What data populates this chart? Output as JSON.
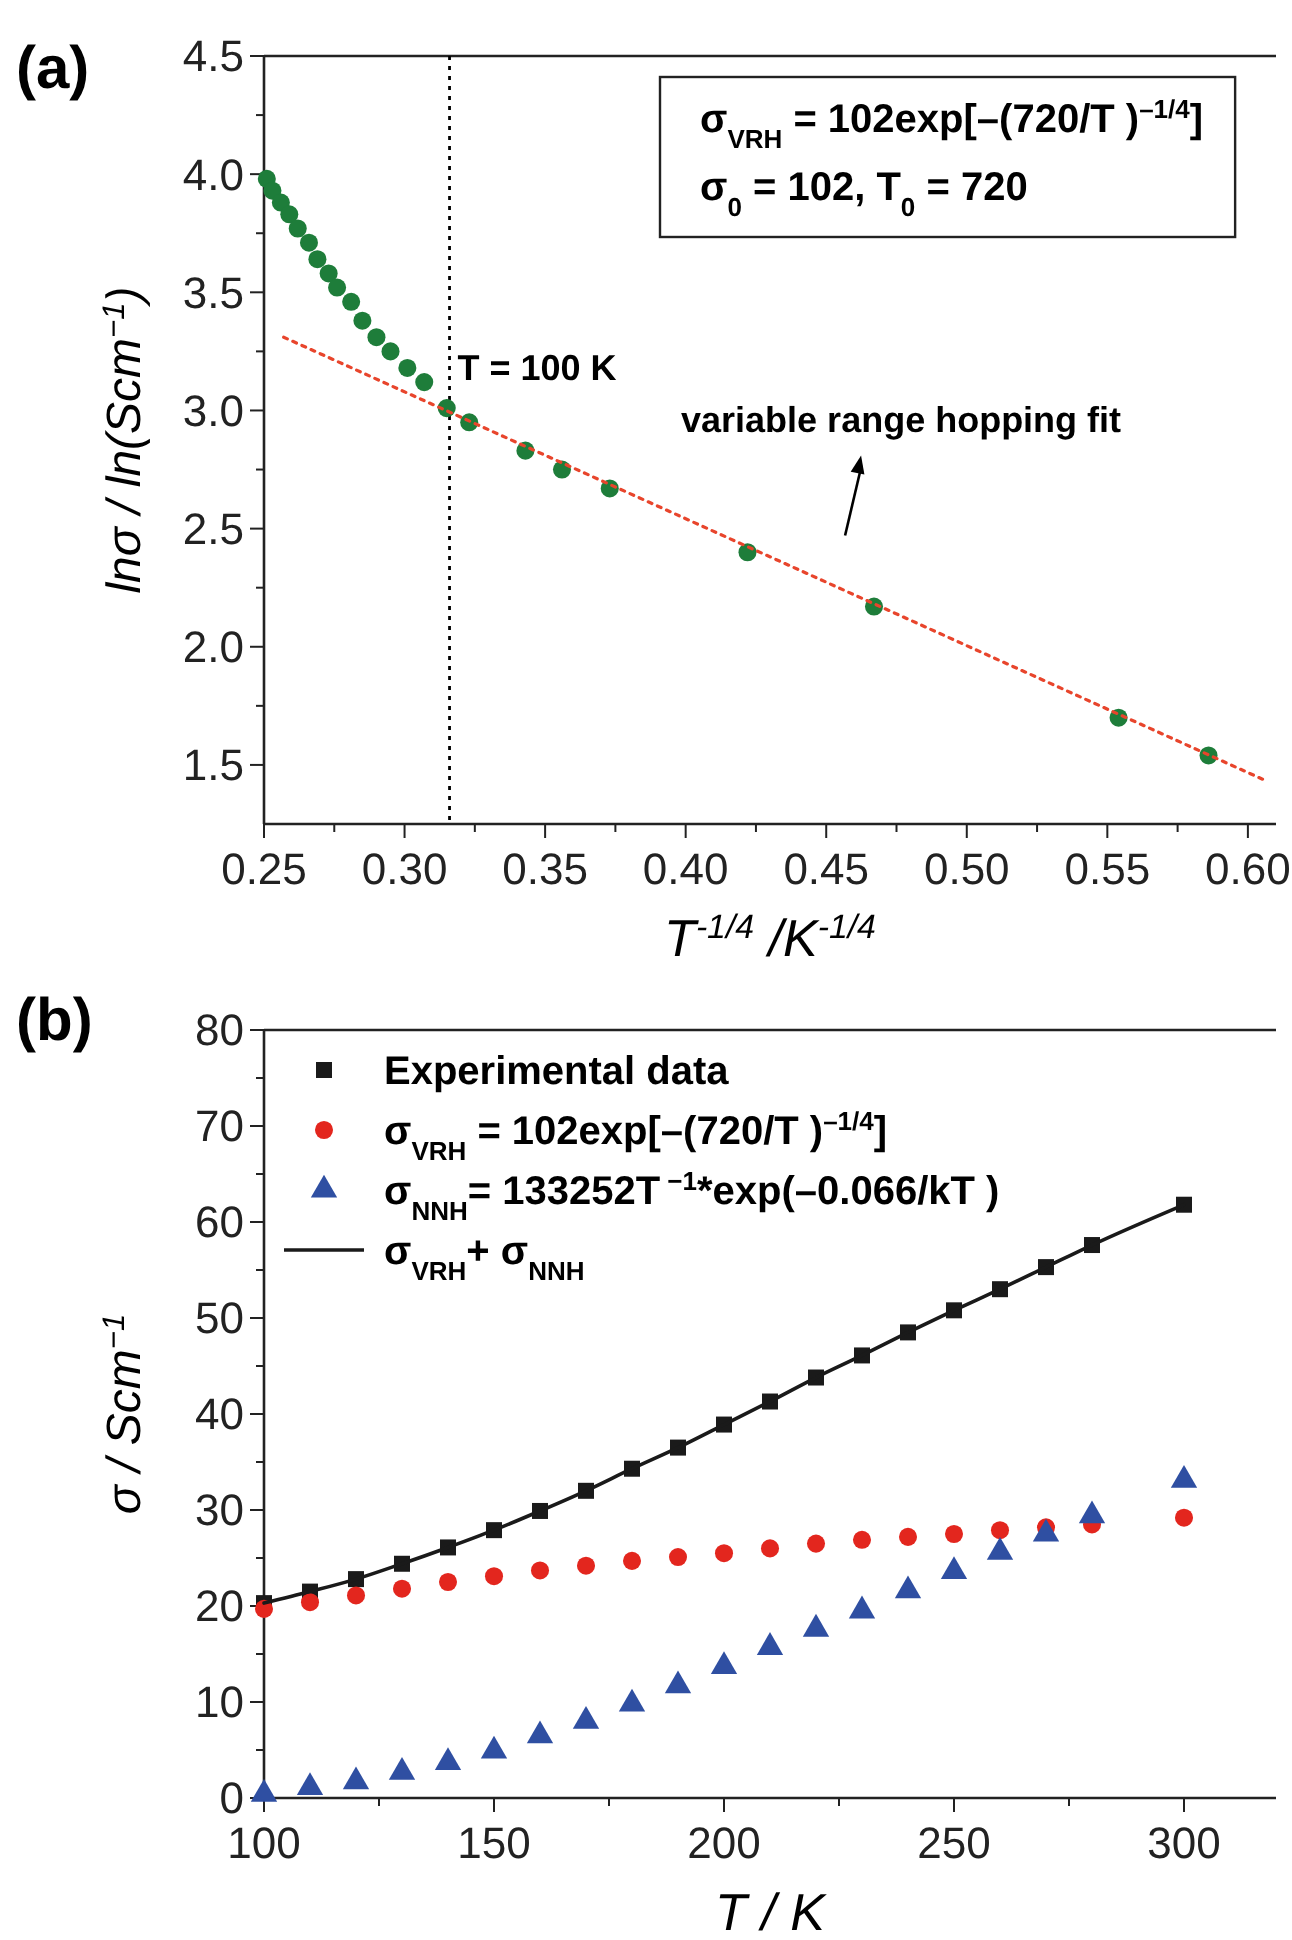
{
  "chart_data": [
    {
      "type": "scatter",
      "title": "(a)",
      "xlabel": "T$^{-1/4}$ /K$^{-1/4}$",
      "ylabel": "lnσ / ln(Scm$^{−1}$)",
      "xlim": [
        0.25,
        0.61
      ],
      "ylim": [
        1.25,
        4.5
      ],
      "xticks": [
        0.25,
        {
          "value": 0.275,
          "label": null
        },
        {
          "value": 0.3,
          "label": "0.30"
        },
        {
          "value": 0.325,
          "label": null
        },
        0.35,
        {
          "value": 0.375,
          "label": null
        },
        {
          "value": 0.4,
          "label": "0.40"
        },
        {
          "value": 0.425,
          "label": null
        },
        0.45,
        {
          "value": 0.475,
          "label": null
        },
        {
          "value": 0.5,
          "label": "0.50"
        },
        {
          "value": 0.525,
          "label": null
        },
        0.55,
        {
          "value": 0.575,
          "label": null
        },
        {
          "value": 0.6,
          "label": "0.60"
        }
      ],
      "yticks": [
        1.5,
        {
          "value": 1.75,
          "label": null
        },
        {
          "value": 2,
          "label": "2.0"
        },
        {
          "value": 2.25,
          "label": null
        },
        2.5,
        {
          "value": 2.75,
          "label": null
        },
        {
          "value": 3,
          "label": "3.0"
        },
        {
          "value": 3.25,
          "label": null
        },
        3.5,
        {
          "value": 3.75,
          "label": null
        },
        {
          "value": 4,
          "label": "4.0"
        },
        {
          "value": 4.25,
          "label": null
        },
        4.5
      ],
      "marker": "circle",
      "series": [
        {
          "color": "#1e7d3a",
          "x": [
            0.251,
            0.253,
            0.256,
            0.259,
            0.262,
            0.266,
            0.269,
            0.273,
            0.276,
            0.281,
            0.285,
            0.29,
            0.295,
            0.301,
            0.307,
            0.315,
            0.323,
            0.343,
            0.356,
            0.373,
            0.422,
            0.467,
            0.554,
            0.586
          ],
          "values": [
            3.98,
            3.93,
            3.88,
            3.83,
            3.77,
            3.71,
            3.64,
            3.58,
            3.52,
            3.46,
            3.38,
            3.31,
            3.25,
            3.18,
            3.12,
            3.01,
            2.95,
            2.83,
            2.75,
            2.67,
            2.4,
            2.17,
            1.7,
            1.54
          ]
        },
        {
          "type": "line",
          "color": "#e8452c",
          "marker": "none",
          "line_style": "dotted",
          "x": [
            0.257,
            0.607
          ],
          "values": [
            3.31,
            1.43
          ]
        }
      ],
      "ref_lines": [
        {
          "axis": "x",
          "value": 0.316,
          "color": "#000000",
          "line_style": "dotted"
        }
      ],
      "annotations": [
        "σ$_{VRH}$ = 102exp[–(720/T )$^{–1/4}$]",
        "σ$_{0}$ = 102, T$_{0}$ = 720",
        {
          "text": "T = 100 K",
          "x": 0.316,
          "y": 3.01
        },
        "variable range hopping fit"
      ]
    },
    {
      "type": "scatter",
      "title": "(b)",
      "xlabel": "T / K",
      "ylabel": "σ / Scm$^{−1}$",
      "xlim": [
        100,
        320
      ],
      "ylim": [
        0,
        80
      ],
      "xticks": [
        100,
        {
          "value": 125,
          "label": null
        },
        150,
        {
          "value": 175,
          "label": null
        },
        200,
        {
          "value": 225,
          "label": null
        },
        250,
        {
          "value": 275,
          "label": null
        },
        300
      ],
      "yticks": [
        0,
        {
          "value": 5,
          "label": null
        },
        10,
        {
          "value": 15,
          "label": null
        },
        20,
        {
          "value": 25,
          "label": null
        },
        30,
        {
          "value": 35,
          "label": null
        },
        40,
        {
          "value": 45,
          "label": null
        },
        50,
        {
          "value": 55,
          "label": null
        },
        60,
        {
          "value": 65,
          "label": null
        },
        70,
        {
          "value": 75,
          "label": null
        },
        80
      ],
      "legend": "top left",
      "series": [
        {
          "name": "Experimental data",
          "marker": "square",
          "color": "#1a1a1a",
          "x": [
            100,
            110,
            120,
            130,
            140,
            150,
            160,
            170,
            180,
            190,
            200,
            210,
            220,
            230,
            240,
            250,
            260,
            270,
            280,
            300
          ],
          "values": [
            20.3,
            21.5,
            22.8,
            24.4,
            26.1,
            27.9,
            29.9,
            32.0,
            34.3,
            36.5,
            38.9,
            41.3,
            43.8,
            46.1,
            48.5,
            50.8,
            53.0,
            55.3,
            57.6,
            61.8
          ]
        },
        {
          "name": "σ$_{VRH}$ = 102exp[–(720/T )$^{–1/4}$]",
          "marker": "circle",
          "color": "#e3261e",
          "x": [
            100,
            110,
            120,
            130,
            140,
            150,
            160,
            170,
            180,
            190,
            200,
            210,
            220,
            230,
            240,
            250,
            260,
            270,
            280,
            300
          ],
          "values": [
            19.7,
            20.4,
            21.1,
            21.8,
            22.5,
            23.1,
            23.7,
            24.2,
            24.7,
            25.1,
            25.5,
            26.0,
            26.5,
            26.9,
            27.2,
            27.5,
            27.9,
            28.2,
            28.5,
            29.2
          ]
        },
        {
          "name": "σ$_{NNH}$= 133252T$^{ −1}$*exp(–0.066/kT )",
          "marker": "triangle",
          "color": "#2f4fa2",
          "x": [
            100,
            110,
            120,
            130,
            140,
            150,
            160,
            170,
            180,
            190,
            200,
            210,
            220,
            230,
            240,
            250,
            260,
            270,
            280,
            300
          ],
          "values": [
            0.4,
            1.1,
            1.7,
            2.7,
            3.7,
            4.9,
            6.5,
            8.0,
            9.8,
            11.7,
            13.7,
            15.7,
            17.6,
            19.5,
            21.6,
            23.6,
            25.6,
            27.5,
            29.4,
            33.1
          ]
        },
        {
          "name": "σ$_{VRH}$+ σ$_{NNH}$",
          "type": "line",
          "marker": "none",
          "line_style": "solid",
          "color": "#1a1a1a",
          "x": [
            100,
            110,
            120,
            130,
            140,
            150,
            160,
            170,
            180,
            190,
            200,
            210,
            220,
            230,
            240,
            250,
            260,
            270,
            280,
            300
          ],
          "values": [
            20.3,
            21.5,
            22.8,
            24.4,
            26.1,
            27.9,
            29.9,
            32.0,
            34.3,
            36.5,
            38.9,
            41.3,
            43.8,
            46.1,
            48.5,
            50.8,
            53.0,
            55.3,
            57.6,
            61.8
          ]
        }
      ]
    }
  ]
}
